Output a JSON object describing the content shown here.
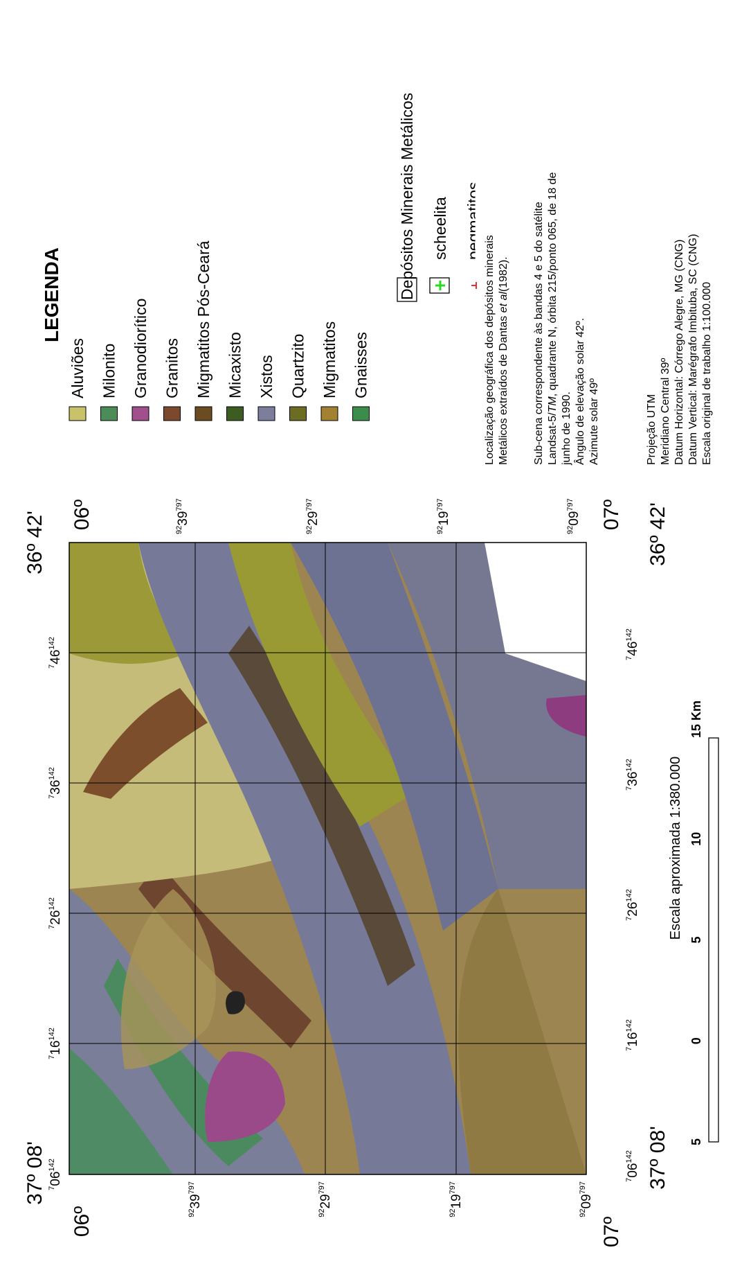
{
  "corners": {
    "lon_west": "37º 08'",
    "lon_east": "36º 42'",
    "lat_north": "06º",
    "lat_south": "07º"
  },
  "grid": {
    "x_labels": [
      [
        "7",
        "06",
        "142"
      ],
      [
        "7",
        "16",
        "142"
      ],
      [
        "7",
        "26",
        "142"
      ],
      [
        "7",
        "36",
        "142"
      ],
      [
        "7",
        "46",
        "142"
      ]
    ],
    "y_labels": [
      [
        "92",
        "39",
        "797"
      ],
      [
        "92",
        "29",
        "797"
      ],
      [
        "92",
        "19",
        "797"
      ],
      [
        "92",
        "09",
        "797"
      ]
    ]
  },
  "legend": {
    "title": "LEGENDA",
    "items": [
      {
        "name": "Aluviões",
        "color": "#c9c26a"
      },
      {
        "name": "Milonito",
        "color": "#4b8c58"
      },
      {
        "name": "Granodiorítico",
        "color": "#a0508c"
      },
      {
        "name": "Granitos",
        "color": "#7b4a2e"
      },
      {
        "name": "Migmatitos Pós-Ceará",
        "color": "#6b4c22"
      },
      {
        "name": "Micaxisto",
        "color": "#3c5c22"
      },
      {
        "name": "Xistos",
        "color": "#7c7e9c"
      },
      {
        "name": "Quartzito",
        "color": "#6c6c22"
      },
      {
        "name": "Migmatitos",
        "color": "#a28232"
      },
      {
        "name": "Gnaisses",
        "color": "#3c8c4c"
      }
    ]
  },
  "deposits": {
    "title": "Depósitos Minerais Metálicos",
    "items": [
      {
        "name": "scheelita",
        "color": "#22dd22"
      },
      {
        "name": "pegmatitos",
        "color": "#e03030"
      }
    ]
  },
  "notes": [
    [
      [
        "Localização geográfica dos depósitos minerais"
      ],
      [
        "Metálicos extraídos de Dantas ",
        {
          "text": "et al",
          "italic": true
        },
        "(1982)."
      ]
    ],
    [
      [
        "Sub-cena correspondente às bandas 4 e 5 do satélite"
      ],
      [
        "Landsat-5/",
        {
          "text": "TM",
          "italic": true
        },
        ", quadrante N, órbita 215/ponto 065, de 18 de"
      ],
      [
        "junho de 1990."
      ],
      [
        "Ângulo de elevação solar 42º."
      ],
      [
        "Azimute solar 49º"
      ]
    ],
    [
      [
        "Projeção UTM"
      ],
      [
        "Meridiano Central 39º"
      ],
      [
        "Datum Horizontal: Córrego Alegre, MG (CNG)"
      ],
      [
        "Datum Vertical: Marégrafo Imbituba, SC (CNG)"
      ],
      [
        "Escala original de trabalho 1:100.000"
      ]
    ]
  ],
  "scale": {
    "text": "Escala aproximada 1:380.000",
    "bar_labels": [
      "5",
      "0",
      "5",
      "10",
      "15 Km"
    ]
  }
}
